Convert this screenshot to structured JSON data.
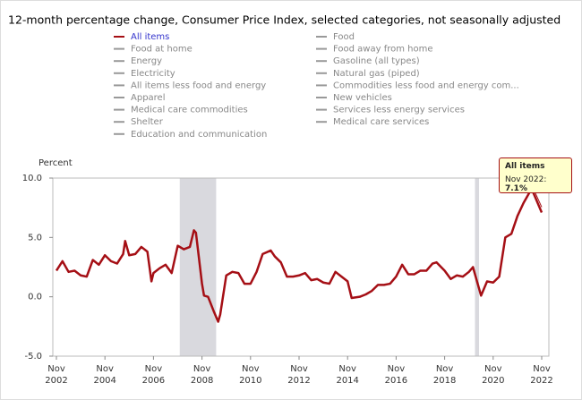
{
  "chart_data": {
    "type": "line",
    "title": "12-month percentage change, Consumer Price Index, selected categories, not seasonally adjusted",
    "y_label": "Percent",
    "series": [
      {
        "name": "All items",
        "color": "#a50f15",
        "x": [
          "2002-11",
          "2003-02",
          "2003-05",
          "2003-08",
          "2003-11",
          "2004-02",
          "2004-05",
          "2004-08",
          "2004-11",
          "2005-02",
          "2005-05",
          "2005-08",
          "2005-09",
          "2005-11",
          "2006-02",
          "2006-05",
          "2006-08",
          "2006-10",
          "2006-11",
          "2007-02",
          "2007-05",
          "2007-08",
          "2007-11",
          "2008-02",
          "2008-05",
          "2008-07",
          "2008-08",
          "2008-11",
          "2008-12",
          "2009-02",
          "2009-05",
          "2009-07",
          "2009-08",
          "2009-11",
          "2010-02",
          "2010-05",
          "2010-08",
          "2010-11",
          "2011-02",
          "2011-05",
          "2011-09",
          "2011-11",
          "2012-02",
          "2012-05",
          "2012-08",
          "2012-11",
          "2013-02",
          "2013-05",
          "2013-08",
          "2013-11",
          "2014-02",
          "2014-05",
          "2014-08",
          "2014-11",
          "2015-01",
          "2015-05",
          "2015-08",
          "2015-11",
          "2016-02",
          "2016-05",
          "2016-08",
          "2016-11",
          "2017-02",
          "2017-05",
          "2017-08",
          "2017-11",
          "2018-02",
          "2018-05",
          "2018-07",
          "2018-11",
          "2019-02",
          "2019-05",
          "2019-08",
          "2019-11",
          "2020-01",
          "2020-05",
          "2020-08",
          "2020-11",
          "2021-02",
          "2021-05",
          "2021-08",
          "2021-11",
          "2022-02",
          "2022-06",
          "2022-08",
          "2022-11"
        ],
        "values": [
          2.2,
          3.0,
          2.1,
          2.2,
          1.8,
          1.7,
          3.1,
          2.7,
          3.5,
          3.0,
          2.8,
          3.6,
          4.7,
          3.5,
          3.6,
          4.2,
          3.8,
          1.3,
          2.0,
          2.4,
          2.7,
          2.0,
          4.3,
          4.0,
          4.2,
          5.6,
          5.4,
          1.1,
          0.1,
          0.0,
          -1.3,
          -2.1,
          -1.5,
          1.8,
          2.1,
          2.0,
          1.1,
          1.1,
          2.1,
          3.6,
          3.9,
          3.4,
          2.9,
          1.7,
          1.7,
          1.8,
          2.0,
          1.4,
          1.5,
          1.2,
          1.1,
          2.1,
          1.7,
          1.3,
          -0.1,
          0.0,
          0.2,
          0.5,
          1.0,
          1.0,
          1.1,
          1.7,
          2.7,
          1.9,
          1.9,
          2.2,
          2.2,
          2.8,
          2.9,
          2.2,
          1.5,
          1.8,
          1.7,
          2.1,
          2.5,
          0.1,
          1.3,
          1.2,
          1.7,
          5.0,
          5.3,
          6.8,
          7.9,
          9.1,
          8.3,
          7.1
        ]
      }
    ],
    "inactive_series": [
      "Food",
      "Food at home",
      "Food away from home",
      "Energy",
      "Gasoline (all types)",
      "Electricity",
      "Natural gas (piped)",
      "All items less food and energy",
      "Commodities less food and energy com...",
      "Apparel",
      "New vehicles",
      "Medical care commodities",
      "Services less energy services",
      "Shelter",
      "Medical care services",
      "Education and communication"
    ],
    "shaded_periods": [
      {
        "start": "2007-12",
        "end": "2009-06"
      },
      {
        "start": "2020-02",
        "end": "2020-04"
      }
    ],
    "xlim": [
      "2002-11",
      "2022-11"
    ],
    "xticks": [
      {
        "value": "2002-11",
        "label": "Nov 2002"
      },
      {
        "value": "2004-11",
        "label": "Nov 2004"
      },
      {
        "value": "2006-11",
        "label": "Nov 2006"
      },
      {
        "value": "2008-11",
        "label": "Nov 2008"
      },
      {
        "value": "2010-11",
        "label": "Nov 2010"
      },
      {
        "value": "2012-11",
        "label": "Nov 2012"
      },
      {
        "value": "2014-11",
        "label": "Nov 2014"
      },
      {
        "value": "2016-11",
        "label": "Nov 2016"
      },
      {
        "value": "2018-11",
        "label": "Nov 2018"
      },
      {
        "value": "2020-11",
        "label": "Nov 2020"
      },
      {
        "value": "2022-11",
        "label": "Nov 2022"
      }
    ],
    "ylim": [
      -5,
      10
    ],
    "yticks": [
      {
        "value": -5,
        "label": "-5.0"
      },
      {
        "value": 0,
        "label": "0.0"
      },
      {
        "value": 5,
        "label": "5.0"
      },
      {
        "value": 10,
        "label": "10.0"
      }
    ],
    "grid": false,
    "tooltip": {
      "date": "Nov 2022:",
      "value": "7.1%"
    }
  }
}
